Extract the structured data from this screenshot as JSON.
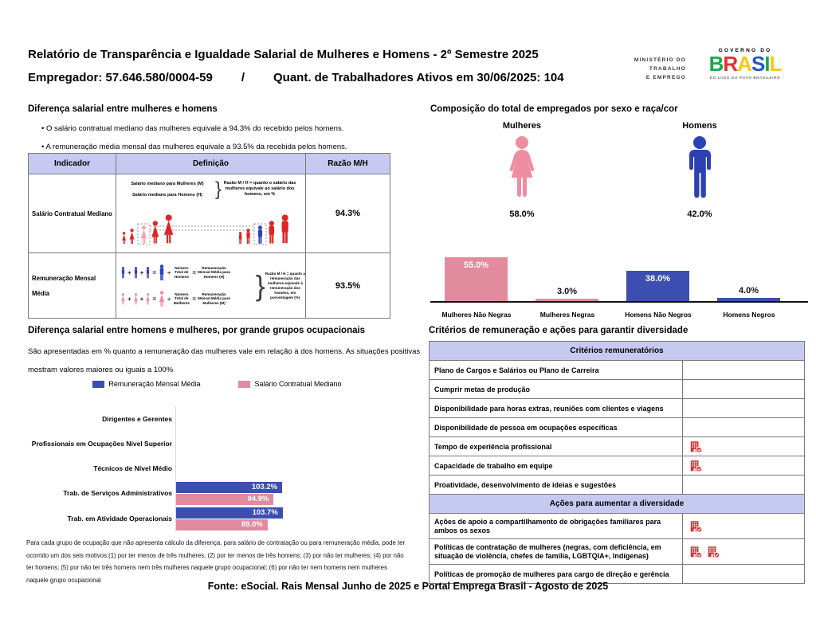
{
  "header": {
    "title": "Relatório de Transparência e Igualdade Salarial de Mulheres e Homens - 2º Semestre 2025",
    "employer": "Empregador: 57.646.580/0004-59",
    "separator": "/",
    "active_workers": "Quant. de Trabalhadores Ativos em 30/06/2025: 104",
    "logo": {
      "ministry_lines": [
        "MINISTÉRIO DO",
        "TRABALHO",
        "E EMPREGO"
      ],
      "governo_do": "GOVERNO DO",
      "brasil_letters": [
        {
          "ch": "B",
          "color": "#18a850"
        },
        {
          "ch": "R",
          "color": "#e3342c"
        },
        {
          "ch": "A",
          "color": "#f6c915"
        },
        {
          "ch": "S",
          "color": "#2757c4"
        },
        {
          "ch": "I",
          "color": "#18a850"
        },
        {
          "ch": "L",
          "color": "#f6c915"
        }
      ],
      "tagline": "DO LADO DO POVO BRASILEIRO"
    }
  },
  "salary_diff": {
    "title": "Diferença salarial entre mulheres e homens",
    "bullets": [
      "O salário contratual mediano das mulheres equivale a 94.3% do recebido pelos homens.",
      "A remuneração média mensal das mulheres equivale a 93.5% da recebida pelos homens."
    ],
    "table": {
      "col_indicator": "Indicador",
      "col_definition": "Definição",
      "col_ratio": "Razão M/H",
      "row1": {
        "indicator": "Salário Contratual Mediano",
        "line_women": "Salário mediano para Mulheres (M)",
        "line_men": "Salário mediano para Homens (H)",
        "brace": "}",
        "note": "Razão M / H = quanto o salário das mulheres equivale ao salário dos homens, em %",
        "ratio": "94.3%"
      },
      "row2": {
        "indicator": "Remuneração Mensal Média",
        "plus": "+",
        "equals": "=",
        "divide": "÷",
        "men_divisor": "Número Total de Homens",
        "men_result": "Remuneração Mensal Média para Homens (H)",
        "women_divisor": "Número Total de Mulheres",
        "women_result": "Remuneração Mensal Média para Mulheres (M)",
        "brace": "}",
        "note": "Razão M / H = quanto a remuneração das mulheres equivale à remuneração dos homens, em porcentagem (%)",
        "ratio": "93.5%"
      }
    }
  },
  "composition": {
    "title": "Composição do total de empregados por sexo e raça/cor",
    "women": {
      "label": "Mulheres",
      "value": "58.0%",
      "color": "#ef8ca1"
    },
    "men": {
      "label": "Homens",
      "value": "42.0%",
      "color": "#2c41b3"
    },
    "race_bars": [
      {
        "category": "Mulheres Não Negras",
        "value": 55.0,
        "label": "55.0%",
        "color": "#e28a9e"
      },
      {
        "category": "Mulheres Negras",
        "value": 3.0,
        "label": "3.0%",
        "color": "#e28a9e"
      },
      {
        "category": "Homens Não Negros",
        "value": 38.0,
        "label": "38.0%",
        "color": "#3c4eb0"
      },
      {
        "category": "Homens Negros",
        "value": 4.0,
        "label": "4.0%",
        "color": "#3c4eb0"
      }
    ]
  },
  "occupations": {
    "title": "Diferença salarial entre homens e mulheres, por grande grupos ocupacionais",
    "description": "São apresentadas em % quanto a remuneração das mulheres vale em relação à dos homens. As situações positivas mostram valores maiores ou iguais a 100%",
    "legend": [
      {
        "label": "Remuneração Mensal Média",
        "color": "#3c4eb0"
      },
      {
        "label": "Salário Contratual Mediano",
        "color": "#e28a9e"
      }
    ],
    "rows": [
      {
        "category": "Dirigentes e Gerentes",
        "values": null
      },
      {
        "category": "Profissionais em Ocupações Nível Superior",
        "values": null
      },
      {
        "category": "Técnicos de Nível Médio",
        "values": null
      },
      {
        "category": "Trab. de Serviços Administrativos",
        "values": [
          {
            "value": 103.2,
            "label": "103.2%"
          },
          {
            "value": 94.9,
            "label": "94.9%"
          }
        ]
      },
      {
        "category": "Trab. em Atividade Operacionais",
        "values": [
          {
            "value": 103.7,
            "label": "103.7%"
          },
          {
            "value": 89.0,
            "label": "89.0%"
          }
        ]
      }
    ],
    "footnote": "Para cada grupo de ocupação que não apresenta cálculo da diferença, para salário de contratação ou para remuneração média, pode ter ocorrido um dos seis motivos:(1) por ter menos de três mulheres; (2) por ter menos de três homens; (3) por não ter mulheres; (4) por não ter homens; (5) por não ter três homens nem três mulheres naquele grupo ocupacional; (6) por não ter nem homens nem mulheres naquele grupo ocupacional"
  },
  "criteria": {
    "title": "Critérios de remuneração e ações para garantir diversidade",
    "icon_meaning": "company-check-icon",
    "sections": [
      {
        "header": "Critérios remuneratórios",
        "rows": [
          {
            "label": "Plano de Cargos e Salários ou Plano de Carreira",
            "icons": 0
          },
          {
            "label": "Cumprir metas de produção",
            "icons": 0
          },
          {
            "label": "Disponibilidade para horas extras, reuniões com clientes e viagens",
            "icons": 0
          },
          {
            "label": "Disponibilidade de pessoa em ocupações específicas",
            "icons": 0
          },
          {
            "label": "Tempo de experiência profissional",
            "icons": 1
          },
          {
            "label": "Capacidade de trabalho em equipe",
            "icons": 1
          },
          {
            "label": "Proatividade, desenvolvimento de ideias e sugestões",
            "icons": 0
          }
        ]
      },
      {
        "header": "Ações para aumentar a diversidade",
        "rows": [
          {
            "label": "Ações de apoio a compartilhamento de obrigações familiares para ambos os sexos",
            "icons": 1
          },
          {
            "label": "Políticas de contratação de mulheres (negras, com deficiência, em situação de violência, chefes de família, LGBTQIA+, Indígenas)",
            "icons": 2
          },
          {
            "label": "Políticas de promoção de mulheres para cargo de direção e gerência",
            "icons": 0
          }
        ]
      }
    ]
  },
  "footer": {
    "source": "Fonte: eSocial. Rais Mensal Junho de 2025 e Portal Emprega Brasil - Agosto de 2025"
  },
  "chart_data": [
    {
      "type": "bar",
      "title": "Composição do total de empregados por sexo",
      "categories": [
        "Mulheres",
        "Homens"
      ],
      "values": [
        58.0,
        42.0
      ],
      "unit": "%"
    },
    {
      "type": "bar",
      "title": "Composição do total de empregados por sexo e raça/cor",
      "categories": [
        "Mulheres Não Negras",
        "Mulheres Negras",
        "Homens Não Negros",
        "Homens Negros"
      ],
      "values": [
        55.0,
        3.0,
        38.0,
        4.0
      ],
      "unit": "%",
      "ylim": [
        0,
        60
      ],
      "grid": false
    },
    {
      "type": "bar",
      "orientation": "horizontal",
      "title": "Diferença salarial entre homens e mulheres, por grande grupos ocupacionais",
      "categories": [
        "Dirigentes e Gerentes",
        "Profissionais em Ocupações Nível Superior",
        "Técnicos de Nível Médio",
        "Trab. de Serviços Administrativos",
        "Trab. em Atividade Operacionais"
      ],
      "series": [
        {
          "name": "Remuneração Mensal Média",
          "values": [
            null,
            null,
            null,
            103.2,
            103.7
          ]
        },
        {
          "name": "Salário Contratual Mediano",
          "values": [
            null,
            null,
            null,
            94.9,
            89.0
          ]
        }
      ],
      "unit": "%",
      "legend_position": "top"
    }
  ]
}
